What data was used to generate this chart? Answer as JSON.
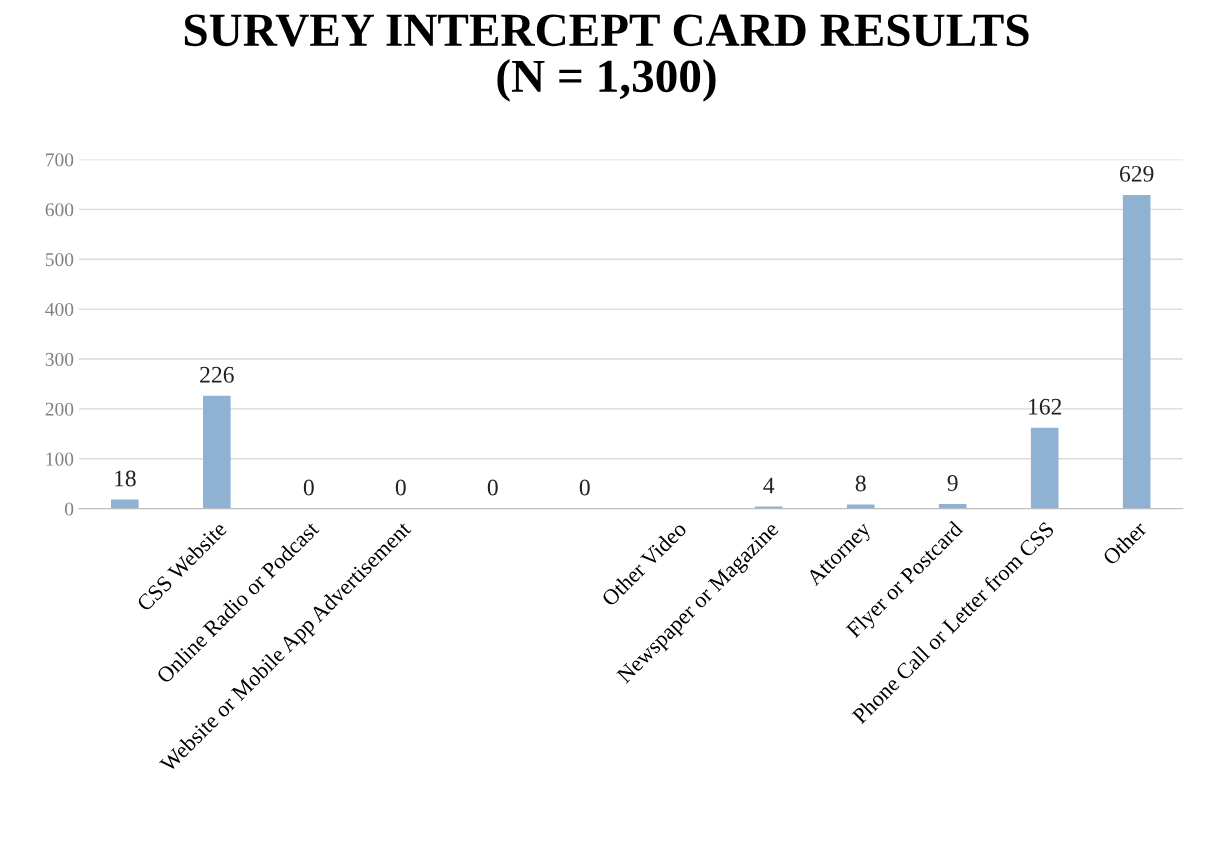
{
  "chart_data": {
    "type": "bar",
    "title": "SURVEY INTERCEPT CARD RESULTS\n(N = 1,300)",
    "categories": [
      null,
      "CSS Website",
      "Online Radio or Podcast",
      "Website or Mobile App Advertisement",
      null,
      null,
      "Other Video",
      "Newspaper or Magazine",
      "Attorney",
      "Flyer or Postcard",
      "Phone Call or Letter from CSS",
      "Other"
    ],
    "values": [
      18,
      226,
      0,
      0,
      0,
      0,
      0,
      4,
      8,
      9,
      162,
      629
    ],
    "value_labels": [
      "18",
      "226",
      "0",
      "0",
      "0",
      "0",
      null,
      "4",
      "8",
      "9",
      "162",
      "629"
    ],
    "color": "#8fb2d3",
    "ylim": [
      0,
      700
    ],
    "yticks": [
      0,
      100,
      200,
      300,
      400,
      500,
      600,
      700
    ],
    "grid": "y"
  }
}
